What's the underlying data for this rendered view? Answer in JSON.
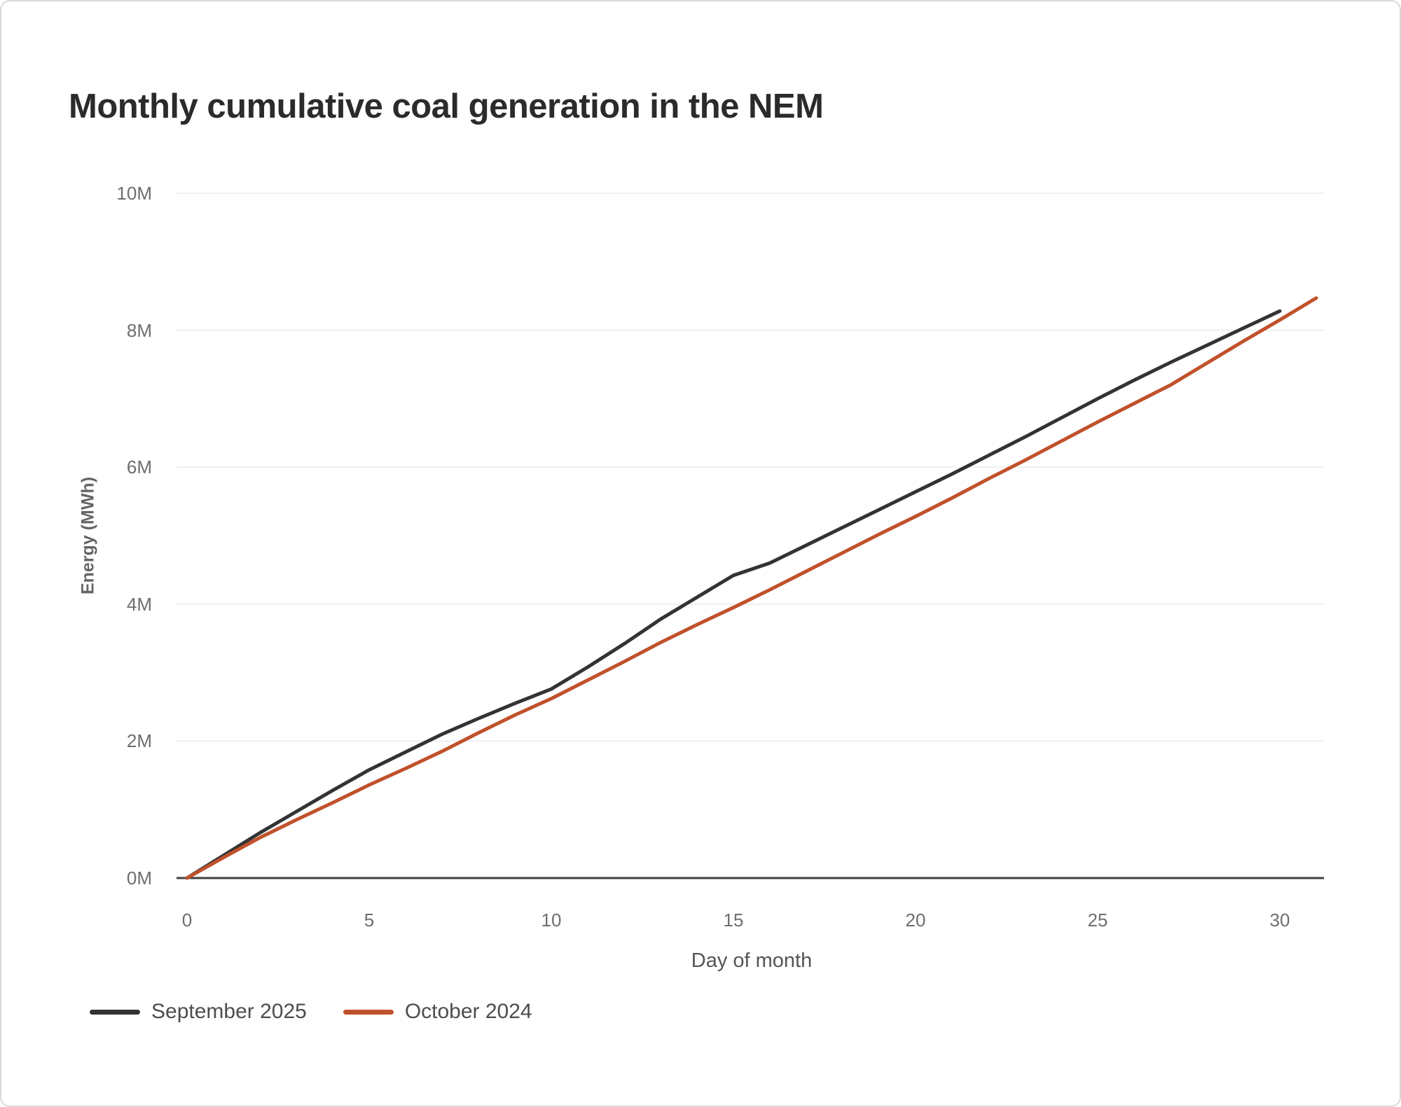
{
  "card": {
    "background": "#ffffff",
    "border_color": "#d8d8d4"
  },
  "chart_data": {
    "type": "line",
    "title": "Monthly cumulative coal generation in the NEM",
    "xlabel": "Day of month",
    "ylabel": "Energy (MWh)",
    "xlim": [
      0,
      31
    ],
    "ylim": [
      0,
      10000000
    ],
    "x_ticks": [
      0,
      5,
      10,
      15,
      20,
      25,
      30
    ],
    "y_ticks": [
      0,
      2,
      4,
      6,
      8,
      10
    ],
    "y_tick_labels": [
      "0M",
      "2M",
      "4M",
      "6M",
      "8M",
      "10M"
    ],
    "values_unit": "million MWh",
    "grid": true,
    "gridline_color": "#ececec",
    "axis_line_color": "#3f3f3f",
    "legend_position": "bottom-left",
    "series": [
      {
        "name": "September 2025",
        "color": "#333333",
        "x": [
          0,
          1,
          2,
          3,
          4,
          5,
          6,
          7,
          8,
          9,
          10,
          11,
          12,
          13,
          14,
          15,
          16,
          17,
          18,
          19,
          20,
          21,
          22,
          23,
          24,
          25,
          26,
          27,
          28,
          29,
          30
        ],
        "values": [
          0,
          0.33,
          0.66,
          0.97,
          1.28,
          1.58,
          1.84,
          2.1,
          2.33,
          2.55,
          2.76,
          3.08,
          3.42,
          3.78,
          4.1,
          4.42,
          4.6,
          4.86,
          5.12,
          5.38,
          5.64,
          5.9,
          6.17,
          6.44,
          6.72,
          7.0,
          7.27,
          7.53,
          7.78,
          8.03,
          8.28
        ]
      },
      {
        "name": "October 2024",
        "color": "#c0512b",
        "x": [
          0,
          1,
          2,
          3,
          4,
          5,
          6,
          7,
          8,
          9,
          10,
          11,
          12,
          13,
          14,
          15,
          16,
          17,
          18,
          19,
          20,
          21,
          22,
          23,
          24,
          25,
          26,
          27,
          28,
          29,
          30,
          31
        ],
        "values": [
          0,
          0.3,
          0.59,
          0.85,
          1.1,
          1.36,
          1.6,
          1.85,
          2.12,
          2.38,
          2.62,
          2.89,
          3.16,
          3.44,
          3.7,
          3.95,
          4.21,
          4.48,
          4.75,
          5.02,
          5.28,
          5.55,
          5.83,
          6.1,
          6.38,
          6.66,
          6.93,
          7.2,
          7.52,
          7.84,
          8.15,
          8.47
        ]
      }
    ]
  }
}
